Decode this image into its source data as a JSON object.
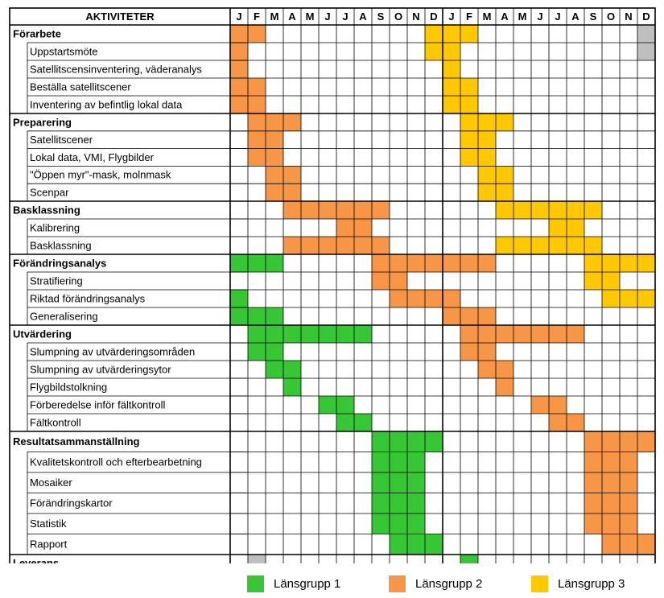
{
  "header": {
    "activities_label": "AKTIVITETER"
  },
  "months": [
    "J",
    "F",
    "M",
    "A",
    "M",
    "J",
    "J",
    "A",
    "S",
    "O",
    "N",
    "D",
    "J",
    "F",
    "M",
    "A",
    "M",
    "J",
    "J",
    "A",
    "S",
    "O",
    "N",
    "D"
  ],
  "colors": {
    "g1": "#36C636",
    "g2": "#F79646",
    "g3": "#FFC800",
    "gray": "#BFBFBF",
    "grid": "#000000"
  },
  "legend": [
    {
      "label": "Länsgrupp 1",
      "color": "#36C636"
    },
    {
      "label": "Länsgrupp 2",
      "color": "#F79646"
    },
    {
      "label": "Länsgrupp 3",
      "color": "#FFC800"
    }
  ],
  "sections": [
    {
      "title": "Förarbete",
      "cells": {
        "g2": [
          0,
          1
        ],
        "g3": [
          11,
          12,
          13
        ],
        "gray": [
          23
        ]
      },
      "items": [
        {
          "label": "Uppstartsmöte",
          "cells": {
            "g2": [
              0
            ],
            "g3": [
              11,
              12
            ],
            "gray": [
              23
            ]
          }
        },
        {
          "label": "Satellitscensinventering, väderanalys",
          "cells": {
            "g2": [
              0
            ],
            "g3": [
              12
            ]
          }
        },
        {
          "label": "Beställa satellitscener",
          "cells": {
            "g2": [
              0,
              1
            ],
            "g3": [
              12,
              13
            ]
          }
        },
        {
          "label": "Inventering av befintlig lokal data",
          "cells": {
            "g2": [
              0,
              1
            ],
            "g3": [
              12,
              13
            ]
          }
        }
      ]
    },
    {
      "title": "Preparering",
      "cells": {
        "g2": [
          1,
          2,
          3
        ],
        "g3": [
          13,
          14,
          15
        ]
      },
      "items": [
        {
          "label": "Satellitscener",
          "cells": {
            "g2": [
              1,
              2
            ],
            "g3": [
              13,
              14
            ]
          }
        },
        {
          "label": "Lokal data, VMI, Flygbilder",
          "cells": {
            "g2": [
              1,
              2
            ],
            "g3": [
              13,
              14
            ]
          }
        },
        {
          "label": "\"Öppen myr\"-mask, molnmask",
          "cells": {
            "g2": [
              2,
              3
            ],
            "g3": [
              14,
              15
            ]
          }
        },
        {
          "label": "Scenpar",
          "cells": {
            "g2": [
              2,
              3
            ],
            "g3": [
              14,
              15
            ]
          }
        }
      ]
    },
    {
      "title": "Basklassning",
      "cells": {
        "g2": [
          3,
          4,
          5,
          6,
          7,
          8
        ],
        "g3": [
          15,
          16,
          17,
          18,
          19,
          20
        ]
      },
      "items": [
        {
          "label": "Kalibrering",
          "cells": {
            "g2": [
              6,
              7
            ],
            "g3": [
              18,
              19
            ]
          }
        },
        {
          "label": "Basklassning",
          "cells": {
            "g2": [
              3,
              4,
              5,
              6,
              7,
              8
            ],
            "g3": [
              15,
              16,
              17,
              18,
              19,
              20
            ]
          }
        }
      ]
    },
    {
      "title": "Förändringsanalys",
      "cells": {
        "g1": [
          0,
          1,
          2
        ],
        "g2": [
          8,
          9,
          10,
          11,
          12,
          13,
          14
        ],
        "g3": [
          20,
          21,
          22,
          23
        ]
      },
      "items": [
        {
          "label": "Stratifiering",
          "cells": {
            "g2": [
              8,
              9
            ],
            "g3": [
              20,
              21
            ]
          }
        },
        {
          "label": "Riktad förändringsanalys",
          "cells": {
            "g1": [
              0
            ],
            "g2": [
              9,
              10,
              11,
              12
            ],
            "g3": [
              21,
              22,
              23
            ]
          }
        },
        {
          "label": "Generalisering",
          "cells": {
            "g1": [
              0,
              1,
              2
            ],
            "g2": [
              12,
              13,
              14
            ]
          }
        }
      ]
    },
    {
      "title": "Utvärdering",
      "cells": {
        "g1": [
          1,
          2,
          3,
          4,
          5,
          6,
          7
        ],
        "g2": [
          13,
          14,
          15,
          16,
          17,
          18,
          19
        ]
      },
      "items": [
        {
          "label": "Slumpning av utvärderingsområden",
          "cells": {
            "g1": [
              1,
              2
            ],
            "g2": [
              13,
              14
            ]
          }
        },
        {
          "label": "Slumpning av utvärderingsytor",
          "cells": {
            "g1": [
              2,
              3
            ],
            "g2": [
              14,
              15
            ]
          }
        },
        {
          "label": "Flygbildstolkning",
          "cells": {
            "g1": [
              3
            ],
            "g2": [
              15
            ]
          }
        },
        {
          "label": "Förberedelse inför fältkontroll",
          "cells": {
            "g1": [
              5,
              6
            ],
            "g2": [
              17,
              18
            ]
          }
        },
        {
          "label": "Fältkontroll",
          "cells": {
            "g1": [
              6,
              7
            ],
            "g2": [
              18,
              19
            ]
          }
        }
      ]
    },
    {
      "title": "Resultatsammanställning",
      "cells": {
        "g1": [
          8,
          9,
          10,
          11
        ],
        "g2": [
          20,
          21,
          22,
          23
        ]
      },
      "items": [
        {
          "label": "Kvalitetskontroll och efterbearbetning",
          "cells": {
            "g1": [
              8,
              9,
              10
            ],
            "g2": [
              20,
              21,
              22
            ]
          }
        },
        {
          "label": "Mosaiker",
          "cells": {
            "g1": [
              8,
              9,
              10
            ],
            "g2": [
              20,
              21,
              22
            ]
          }
        },
        {
          "label": "Förändringskartor",
          "cells": {
            "g1": [
              8,
              9,
              10
            ],
            "g2": [
              20,
              21,
              22
            ]
          }
        },
        {
          "label": "Statistik",
          "cells": {
            "g1": [
              8,
              9,
              10
            ],
            "g2": [
              20,
              21,
              22
            ]
          }
        },
        {
          "label": "Rapport",
          "cells": {
            "g1": [
              9,
              10,
              11
            ],
            "g2": [
              21,
              22,
              23
            ]
          }
        }
      ]
    },
    {
      "title": "Leverans",
      "cells": {
        "gray": [
          1
        ],
        "g1": [
          13
        ]
      },
      "items": []
    }
  ]
}
